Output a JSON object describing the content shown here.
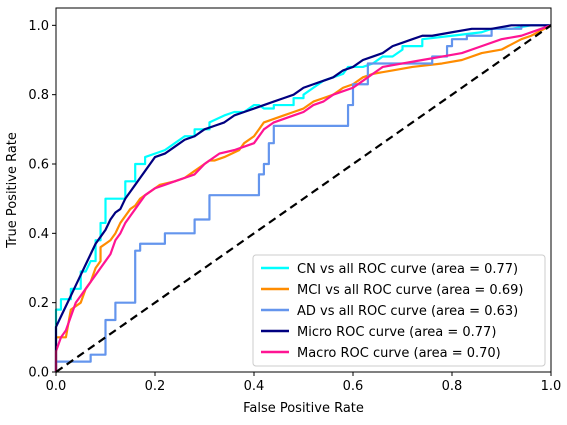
{
  "chart_data": {
    "type": "line",
    "title": "",
    "xlabel": "False Positive Rate",
    "ylabel": "True Positive Rate",
    "xlim": [
      0.0,
      1.0
    ],
    "ylim": [
      0.0,
      1.05
    ],
    "xticks": [
      0.0,
      0.2,
      0.4,
      0.6,
      0.8,
      1.0
    ],
    "xtick_labels": [
      "0.0",
      "0.2",
      "0.4",
      "0.6",
      "0.8",
      "1.0"
    ],
    "yticks": [
      0.0,
      0.2,
      0.4,
      0.6,
      0.8,
      1.0
    ],
    "ytick_labels": [
      "0.0",
      "0.2",
      "0.4",
      "0.6",
      "0.8",
      "1.0"
    ],
    "grid": false,
    "legend_position": "lower-right",
    "series": [
      {
        "name": "CN vs all ROC curve (area = 0.77)",
        "color": "#00ffff",
        "x": [
          0.0,
          0.0,
          0.01,
          0.01,
          0.03,
          0.03,
          0.05,
          0.05,
          0.06,
          0.07,
          0.08,
          0.08,
          0.09,
          0.09,
          0.1,
          0.1,
          0.11,
          0.11,
          0.14,
          0.14,
          0.16,
          0.16,
          0.18,
          0.18,
          0.22,
          0.24,
          0.26,
          0.28,
          0.28,
          0.31,
          0.31,
          0.34,
          0.36,
          0.38,
          0.4,
          0.41,
          0.42,
          0.44,
          0.44,
          0.48,
          0.48,
          0.5,
          0.5,
          0.52,
          0.54,
          0.56,
          0.58,
          0.59,
          0.62,
          0.64,
          0.66,
          0.68,
          0.7,
          0.7,
          0.74,
          0.74,
          0.8,
          0.86,
          0.88,
          0.92,
          0.96,
          1.0
        ],
        "y": [
          0.0,
          0.18,
          0.18,
          0.21,
          0.21,
          0.24,
          0.24,
          0.29,
          0.29,
          0.32,
          0.32,
          0.38,
          0.38,
          0.43,
          0.43,
          0.5,
          0.5,
          0.5,
          0.5,
          0.55,
          0.55,
          0.6,
          0.6,
          0.62,
          0.64,
          0.66,
          0.68,
          0.68,
          0.7,
          0.7,
          0.72,
          0.74,
          0.75,
          0.75,
          0.77,
          0.77,
          0.76,
          0.76,
          0.77,
          0.77,
          0.79,
          0.79,
          0.8,
          0.82,
          0.84,
          0.85,
          0.86,
          0.88,
          0.88,
          0.89,
          0.91,
          0.91,
          0.93,
          0.94,
          0.94,
          0.96,
          0.97,
          0.98,
          0.99,
          0.99,
          1.0,
          1.0
        ]
      },
      {
        "name": "MCI vs all ROC curve (area = 0.69)",
        "color": "#ff8c00",
        "x": [
          0.0,
          0.0,
          0.02,
          0.03,
          0.05,
          0.06,
          0.07,
          0.08,
          0.09,
          0.09,
          0.1,
          0.11,
          0.12,
          0.13,
          0.14,
          0.15,
          0.16,
          0.17,
          0.18,
          0.19,
          0.21,
          0.24,
          0.26,
          0.28,
          0.3,
          0.31,
          0.32,
          0.34,
          0.37,
          0.38,
          0.4,
          0.41,
          0.42,
          0.44,
          0.46,
          0.48,
          0.5,
          0.52,
          0.54,
          0.56,
          0.58,
          0.6,
          0.62,
          0.64,
          0.68,
          0.72,
          0.78,
          0.82,
          0.86,
          0.9,
          0.94,
          0.96,
          1.0
        ],
        "y": [
          0.0,
          0.1,
          0.1,
          0.18,
          0.2,
          0.24,
          0.26,
          0.3,
          0.32,
          0.36,
          0.37,
          0.38,
          0.4,
          0.43,
          0.45,
          0.47,
          0.48,
          0.5,
          0.51,
          0.52,
          0.54,
          0.55,
          0.56,
          0.58,
          0.6,
          0.61,
          0.61,
          0.62,
          0.64,
          0.66,
          0.68,
          0.7,
          0.72,
          0.73,
          0.74,
          0.75,
          0.76,
          0.78,
          0.79,
          0.8,
          0.82,
          0.83,
          0.85,
          0.86,
          0.87,
          0.88,
          0.89,
          0.9,
          0.92,
          0.93,
          0.96,
          0.97,
          1.0
        ]
      },
      {
        "name": "AD vs all ROC curve (area = 0.63)",
        "color": "#6495ed",
        "x": [
          0.0,
          0.0,
          0.07,
          0.07,
          0.1,
          0.1,
          0.12,
          0.12,
          0.16,
          0.16,
          0.17,
          0.17,
          0.22,
          0.22,
          0.28,
          0.28,
          0.31,
          0.31,
          0.41,
          0.41,
          0.42,
          0.42,
          0.43,
          0.43,
          0.44,
          0.44,
          0.59,
          0.59,
          0.6,
          0.6,
          0.63,
          0.63,
          0.76,
          0.76,
          0.79,
          0.79,
          0.8,
          0.8,
          0.83,
          0.83,
          0.88,
          0.88,
          0.94,
          0.94,
          1.0
        ],
        "y": [
          0.0,
          0.03,
          0.03,
          0.05,
          0.05,
          0.15,
          0.15,
          0.2,
          0.2,
          0.35,
          0.35,
          0.37,
          0.37,
          0.4,
          0.4,
          0.44,
          0.44,
          0.51,
          0.51,
          0.57,
          0.57,
          0.6,
          0.6,
          0.66,
          0.66,
          0.71,
          0.71,
          0.77,
          0.77,
          0.83,
          0.83,
          0.89,
          0.89,
          0.91,
          0.91,
          0.94,
          0.94,
          0.96,
          0.96,
          0.97,
          0.97,
          0.99,
          0.99,
          1.0,
          1.0
        ]
      },
      {
        "name": "Micro ROC curve (area = 0.77)",
        "color": "#000080",
        "x": [
          0.0,
          0.0,
          0.01,
          0.02,
          0.03,
          0.04,
          0.05,
          0.06,
          0.07,
          0.08,
          0.09,
          0.1,
          0.11,
          0.12,
          0.13,
          0.14,
          0.15,
          0.16,
          0.17,
          0.18,
          0.19,
          0.2,
          0.22,
          0.24,
          0.26,
          0.28,
          0.3,
          0.32,
          0.34,
          0.36,
          0.38,
          0.4,
          0.42,
          0.44,
          0.46,
          0.48,
          0.5,
          0.52,
          0.54,
          0.56,
          0.58,
          0.6,
          0.62,
          0.64,
          0.66,
          0.68,
          0.7,
          0.72,
          0.74,
          0.76,
          0.8,
          0.84,
          0.88,
          0.92,
          0.96,
          1.0
        ],
        "y": [
          0.0,
          0.13,
          0.16,
          0.19,
          0.22,
          0.25,
          0.28,
          0.31,
          0.34,
          0.37,
          0.39,
          0.41,
          0.44,
          0.46,
          0.47,
          0.5,
          0.52,
          0.54,
          0.56,
          0.58,
          0.6,
          0.62,
          0.63,
          0.65,
          0.67,
          0.68,
          0.7,
          0.71,
          0.72,
          0.74,
          0.75,
          0.76,
          0.77,
          0.78,
          0.79,
          0.8,
          0.82,
          0.83,
          0.84,
          0.85,
          0.87,
          0.88,
          0.9,
          0.91,
          0.92,
          0.94,
          0.95,
          0.96,
          0.97,
          0.97,
          0.98,
          0.99,
          0.99,
          1.0,
          1.0,
          1.0
        ]
      },
      {
        "name": "Macro ROC curve (area = 0.70)",
        "color": "#ff1493",
        "x": [
          0.0,
          0.0,
          0.01,
          0.02,
          0.03,
          0.04,
          0.05,
          0.06,
          0.07,
          0.08,
          0.09,
          0.1,
          0.11,
          0.12,
          0.13,
          0.14,
          0.15,
          0.16,
          0.17,
          0.18,
          0.2,
          0.22,
          0.24,
          0.26,
          0.28,
          0.3,
          0.31,
          0.33,
          0.36,
          0.38,
          0.4,
          0.42,
          0.44,
          0.46,
          0.48,
          0.5,
          0.52,
          0.54,
          0.56,
          0.58,
          0.6,
          0.62,
          0.64,
          0.66,
          0.7,
          0.74,
          0.78,
          0.82,
          0.86,
          0.9,
          0.94,
          0.98,
          1.0
        ],
        "y": [
          0.0,
          0.06,
          0.1,
          0.12,
          0.16,
          0.2,
          0.22,
          0.24,
          0.26,
          0.28,
          0.3,
          0.32,
          0.34,
          0.38,
          0.4,
          0.43,
          0.45,
          0.47,
          0.49,
          0.51,
          0.53,
          0.54,
          0.55,
          0.56,
          0.57,
          0.6,
          0.61,
          0.63,
          0.64,
          0.65,
          0.66,
          0.7,
          0.72,
          0.73,
          0.74,
          0.75,
          0.77,
          0.78,
          0.8,
          0.81,
          0.82,
          0.84,
          0.86,
          0.88,
          0.89,
          0.9,
          0.91,
          0.92,
          0.94,
          0.96,
          0.97,
          0.99,
          1.0
        ]
      }
    ],
    "reference_line": {
      "x": [
        0.0,
        1.0
      ],
      "y": [
        0.0,
        1.0
      ],
      "color": "#000000",
      "style": "dashed"
    }
  }
}
